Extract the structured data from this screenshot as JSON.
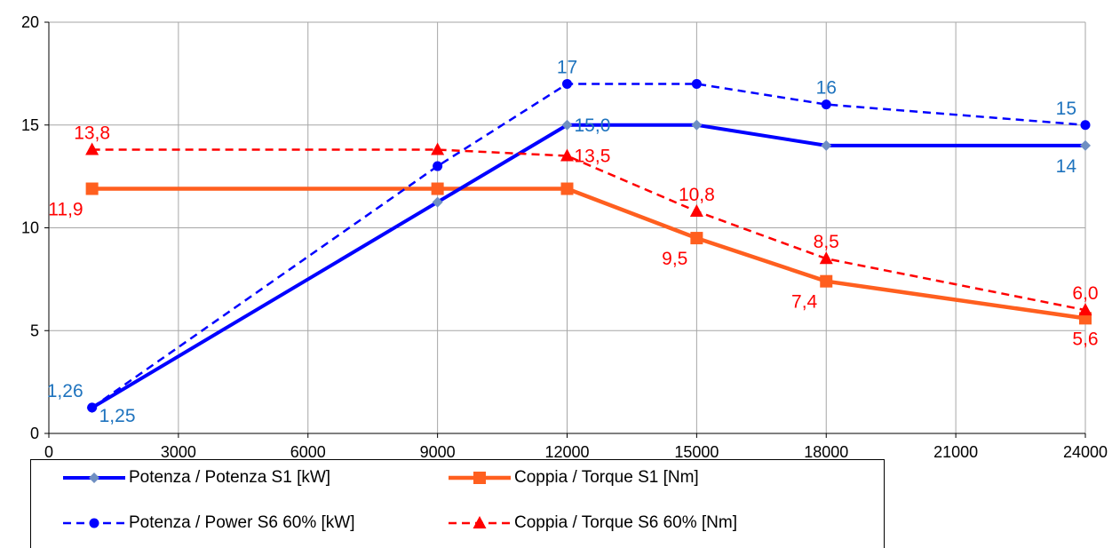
{
  "chart_data": {
    "type": "line",
    "title": "",
    "xlabel": "",
    "ylabel": "",
    "xlim": [
      0,
      24000
    ],
    "ylim": [
      0,
      20
    ],
    "xticks": [
      0,
      3000,
      6000,
      9000,
      12000,
      15000,
      18000,
      21000,
      24000
    ],
    "yticks": [
      0,
      5,
      10,
      15,
      20
    ],
    "grid": true,
    "legend_position": "bottom",
    "series": [
      {
        "name": "Potenza / Potenza S1 [kW]",
        "color": "#0000ff",
        "line_style": "solid",
        "marker": "diamond",
        "marker_color": "#6f8fc2",
        "x": [
          1000,
          9000,
          12000,
          15000,
          18000,
          24000
        ],
        "y": [
          1.25,
          11.25,
          15.0,
          15.0,
          14.0,
          14.0
        ],
        "labels": [
          {
            "index": 0,
            "text": "1,25",
            "color": "#1e73be",
            "position": "below-right"
          },
          {
            "index": 2,
            "text": "15,0",
            "color": "#1e73be",
            "position": "right"
          },
          {
            "index": 5,
            "text": "14",
            "color": "#1e73be",
            "position": "below-left"
          }
        ]
      },
      {
        "name": "Coppia / Torque S1 [Nm]",
        "color": "#ff5f1f",
        "line_style": "solid",
        "marker": "square",
        "marker_color": "#ff5f1f",
        "x": [
          1000,
          9000,
          12000,
          15000,
          18000,
          24000
        ],
        "y": [
          11.9,
          11.9,
          11.9,
          9.5,
          7.4,
          5.6
        ],
        "labels": [
          {
            "index": 0,
            "text": "11,9",
            "color": "#ff0000",
            "position": "below-left"
          },
          {
            "index": 3,
            "text": "9,5",
            "color": "#ff0000",
            "position": "below-left"
          },
          {
            "index": 4,
            "text": "7,4",
            "color": "#ff0000",
            "position": "below-left"
          },
          {
            "index": 5,
            "text": "5,6",
            "color": "#ff0000",
            "position": "below"
          }
        ]
      },
      {
        "name": "Potenza / Power S6 60% [kW]",
        "color": "#0000ff",
        "line_style": "dashed",
        "marker": "circle",
        "marker_color": "#0000ff",
        "x": [
          1000,
          9000,
          12000,
          15000,
          18000,
          24000
        ],
        "y": [
          1.26,
          13.0,
          17.0,
          17.0,
          16.0,
          15.0
        ],
        "labels": [
          {
            "index": 0,
            "text": "1,26",
            "color": "#1e73be",
            "position": "above-left"
          },
          {
            "index": 2,
            "text": "17",
            "color": "#1e73be",
            "position": "above"
          },
          {
            "index": 4,
            "text": "16",
            "color": "#1e73be",
            "position": "above"
          },
          {
            "index": 5,
            "text": "15",
            "color": "#1e73be",
            "position": "above-left"
          }
        ]
      },
      {
        "name": "Coppia / Torque S6 60% [Nm]",
        "color": "#ff0000",
        "line_style": "dashed",
        "marker": "triangle",
        "marker_color": "#ff0000",
        "x": [
          1000,
          9000,
          12000,
          15000,
          18000,
          24000
        ],
        "y": [
          13.8,
          13.8,
          13.5,
          10.8,
          8.5,
          6.0
        ],
        "labels": [
          {
            "index": 0,
            "text": "13,8",
            "color": "#ff0000",
            "position": "above"
          },
          {
            "index": 2,
            "text": "13,5",
            "color": "#ff0000",
            "position": "right"
          },
          {
            "index": 3,
            "text": "10,8",
            "color": "#ff0000",
            "position": "above"
          },
          {
            "index": 4,
            "text": "8,5",
            "color": "#ff0000",
            "position": "above"
          },
          {
            "index": 5,
            "text": "6,0",
            "color": "#ff0000",
            "position": "above"
          }
        ]
      }
    ]
  }
}
